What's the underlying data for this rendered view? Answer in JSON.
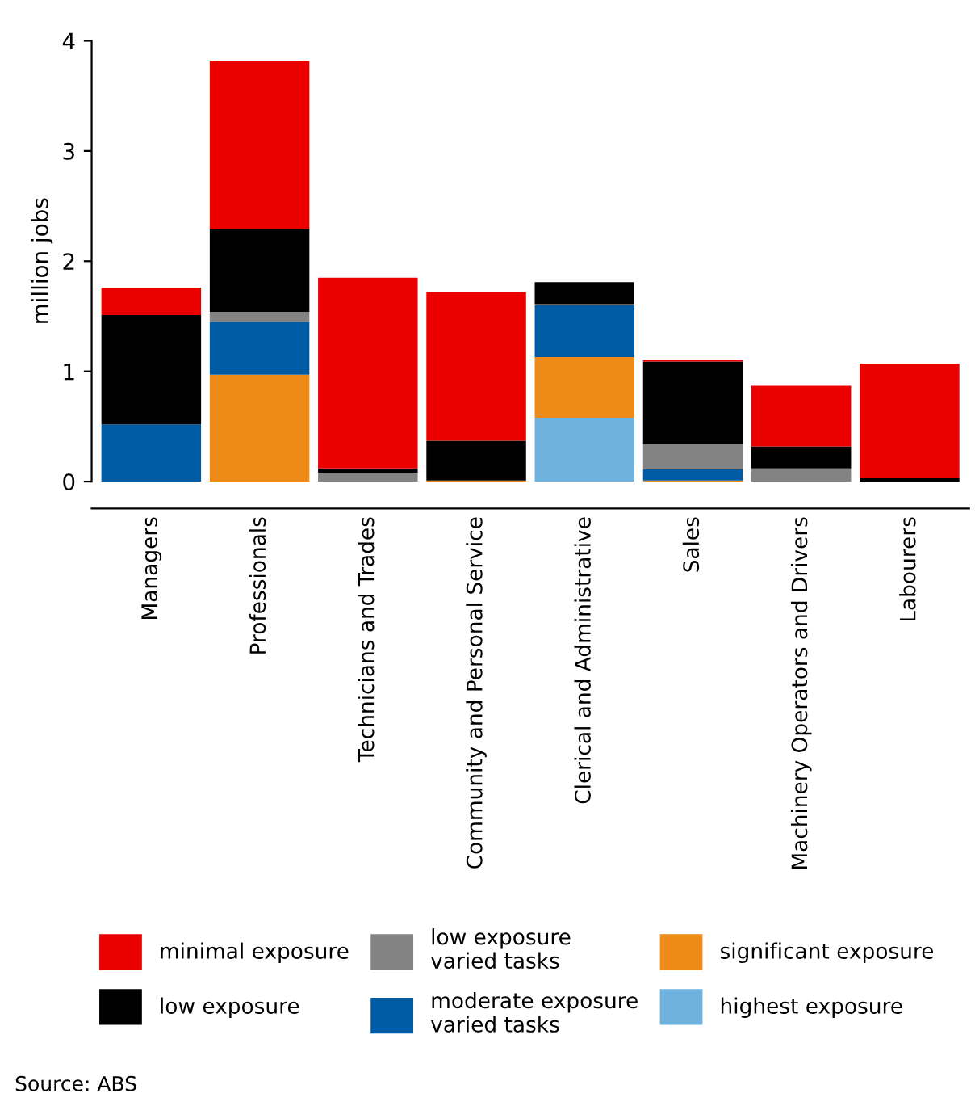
{
  "chart_data": {
    "type": "bar",
    "stacked": true,
    "ylabel": "million jobs",
    "categories": [
      "Managers",
      "Professionals",
      "Technicians and Trades",
      "Community and Personal Service",
      "Clerical and Administrative",
      "Sales",
      "Machinery Operators and Drivers",
      "Labourers"
    ],
    "series": [
      {
        "name": "highest exposure",
        "color": "#6eb1dc",
        "values": [
          0,
          0,
          0,
          0,
          0.58,
          0,
          0,
          0
        ]
      },
      {
        "name": "significant exposure",
        "color": "#ee8a17",
        "values": [
          0,
          0.97,
          0,
          0.01,
          0.55,
          0.01,
          0,
          0
        ]
      },
      {
        "name": "moderate exposure\nvaried tasks",
        "color": "#005ba5",
        "values": [
          0.52,
          0.48,
          0,
          0,
          0.47,
          0.1,
          0,
          0
        ]
      },
      {
        "name": "low exposure\nvaried tasks",
        "color": "#838383",
        "values": [
          0,
          0.09,
          0.08,
          0,
          0.01,
          0.23,
          0.12,
          0
        ]
      },
      {
        "name": "low exposure",
        "color": "#000000",
        "values": [
          0.99,
          0.75,
          0.04,
          0.36,
          0.2,
          0.75,
          0.2,
          0.03
        ]
      },
      {
        "name": "minimal exposure",
        "color": "#eb0000",
        "values": [
          0.25,
          1.53,
          1.73,
          1.35,
          0,
          0.01,
          0.55,
          1.04
        ]
      }
    ],
    "ylim": [
      0,
      4
    ],
    "yticks": [
      0,
      1,
      2,
      3,
      4
    ],
    "grid": false,
    "legend": "bottom",
    "annotations": [
      "Source: ABS"
    ]
  }
}
